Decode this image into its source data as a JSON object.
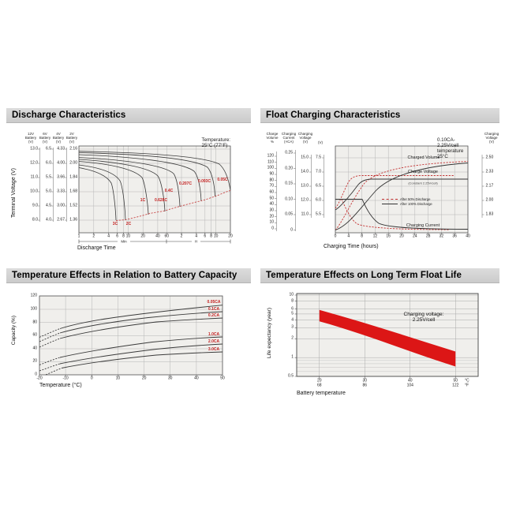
{
  "headers": {
    "discharge": "Discharge Characteristics",
    "float_charging": "Float Charging Characteristics",
    "temp_capacity": "Temperature Effects in Relation to Battery Capacity",
    "float_life": "Temperature Effects on Long Term Float Life"
  },
  "colors": {
    "accent_red": "#c42222",
    "band_red": "#dc1616",
    "curve": "#3a3a3a",
    "grid": "#b5b5b5",
    "plot_bg": "#f0efec",
    "header_bg": "#d5d5d5"
  },
  "charts": {
    "discharge": {
      "note": "Temperature: 25°C (77°F)",
      "col_headers": [
        "12V\nBattery\n(V)",
        "6V\nBattery\n(V)",
        "4V\nBattery\n(V)",
        "2V\nBattery\n(V)"
      ],
      "scale_12v": [
        "13.0",
        "12.0",
        "11.0",
        "10.0",
        "9.0",
        "8.0"
      ],
      "scale_6v": [
        "6.5",
        "6.0",
        "5.5",
        "5.0",
        "4.5",
        "4.0"
      ],
      "scale_4v": [
        "4.33",
        "4.00",
        "3.66",
        "3.33",
        "3.00",
        "2.67"
      ],
      "scale_2v": [
        "2.16",
        "2.00",
        "1.84",
        "1.68",
        "1.52",
        "1.36"
      ],
      "x_ticks_minutes": [
        "1",
        "2",
        "4",
        "6",
        "8",
        "10",
        "20",
        "40",
        "60"
      ],
      "x_ticks_hours": [
        "2",
        "4",
        "6",
        "8",
        "10",
        "20"
      ],
      "range_min": "Min",
      "range_h": "H",
      "y_title": "Terminal Voltage (V)",
      "x_title": "Discharge Time",
      "curve_labels": [
        "3C",
        "2C",
        "1C",
        "0.628C",
        "0.4C",
        "0.207C",
        "0.093C",
        "0.05C"
      ]
    },
    "float_charging": {
      "note": "0.10CA-2.25V/cell  temperature 25°C",
      "col_headers": [
        "Charge\nVolume\n%",
        "Charging\nCurrent\n(×CA)",
        "Charging\nVoltage\n(V)"
      ],
      "unit_v6": "(V)",
      "right_header": "Charging\nVoltage\n(V)",
      "scale_volume": [
        "120",
        "110",
        "100",
        "90",
        "80",
        "70",
        "60",
        "50",
        "40",
        "30",
        "20",
        "10",
        "0"
      ],
      "scale_current": [
        "0.25",
        "0.20",
        "0.15",
        "0.10",
        "0.05",
        "0"
      ],
      "scale_12v": [
        "15.0",
        "14.0",
        "13.0",
        "12.0",
        "11.0"
      ],
      "scale_6v": [
        "7.5",
        "7.0",
        "6.5",
        "6.0",
        "5.5"
      ],
      "scale_cell": [
        "2.50",
        "2.33",
        "2.17",
        "2.00",
        "1.83"
      ],
      "x_ticks": [
        "0",
        "4",
        "8",
        "12",
        "16",
        "20",
        "24",
        "28",
        "32",
        "36",
        "40"
      ],
      "x_title": "Charging Time (hours)",
      "label_charged_volume": "Charged Volume",
      "label_charge_voltage": "Charge Voltage",
      "label_charge_voltage_sub": "(Constant 2.25V/cell)",
      "label_charging_current": "Charging Current",
      "legend_50": "After 50% Discharge",
      "legend_100": "After 100% Discharge"
    },
    "temp_capacity": {
      "y_ticks": [
        "120",
        "100",
        "80",
        "60",
        "40",
        "20",
        "0"
      ],
      "x_ticks": [
        "-20",
        "-10",
        "0",
        "10",
        "20",
        "30",
        "40",
        "50"
      ],
      "y_title": "Capacity (%)",
      "x_title": "Temperature (°C)",
      "curve_labels": [
        "0.05CA",
        "0.1CA",
        "0.2CA",
        "1.0CA",
        "2.0CA",
        "3.0CA"
      ]
    },
    "float_life": {
      "y_ticks": [
        "10",
        "8",
        "6",
        "5",
        "4",
        "3",
        "2",
        "1",
        "0.5"
      ],
      "x_ticks_c": [
        "20",
        "30",
        "40",
        "50"
      ],
      "x_ticks_f": [
        "68",
        "86",
        "104",
        "122"
      ],
      "unit_c": "°C",
      "unit_f": "°F",
      "y_title": "Life expectancy (year)",
      "x_title": "Battery temperature",
      "annotation": "Charging voltage:\n2.25V/cell"
    }
  },
  "chart_data": [
    {
      "type": "line",
      "title": "Discharge Characteristics",
      "condition": "Temperature: 25°C (77°F)",
      "x_axis": {
        "label": "Discharge Time",
        "scale": "log",
        "units": [
          "Min",
          "H"
        ],
        "ticks_minutes": [
          1,
          2,
          4,
          6,
          8,
          10,
          20,
          40,
          60
        ],
        "ticks_hours": [
          2,
          4,
          6,
          8,
          10,
          20
        ]
      },
      "y_axis": {
        "label": "Terminal Voltage (V)",
        "scales": {
          "12V": [
            13.0,
            12.0,
            11.0,
            10.0,
            9.0,
            8.0
          ],
          "6V": [
            6.5,
            6.0,
            5.5,
            5.0,
            4.5,
            4.0
          ],
          "4V": [
            4.33,
            4.0,
            3.66,
            3.33,
            3.0,
            2.67
          ],
          "2V": [
            2.16,
            2.0,
            1.84,
            1.68,
            1.52,
            1.36
          ]
        }
      },
      "series": [
        {
          "name": "3C",
          "points_min_Vpercell": [
            [
              1,
              1.95
            ],
            [
              3,
              1.82
            ],
            [
              5,
              1.62
            ],
            [
              6,
              1.36
            ]
          ]
        },
        {
          "name": "2C",
          "points_min_Vpercell": [
            [
              1,
              1.99
            ],
            [
              4,
              1.88
            ],
            [
              8,
              1.62
            ],
            [
              9.5,
              1.37
            ]
          ]
        },
        {
          "name": "1C",
          "points_min_Vpercell": [
            [
              1,
              2.03
            ],
            [
              10,
              1.92
            ],
            [
              25,
              1.62
            ],
            [
              30,
              1.42
            ]
          ]
        },
        {
          "name": "0.628C",
          "points_min_Vpercell": [
            [
              1,
              2.05
            ],
            [
              20,
              1.93
            ],
            [
              45,
              1.66
            ],
            [
              55,
              1.45
            ]
          ]
        },
        {
          "name": "0.4C",
          "points_min_Vpercell": [
            [
              1,
              2.07
            ],
            [
              40,
              1.93
            ],
            [
              90,
              1.68
            ],
            [
              110,
              1.5
            ]
          ]
        },
        {
          "name": "0.207C",
          "points_min_Vpercell": [
            [
              1,
              2.09
            ],
            [
              90,
              1.92
            ],
            [
              200,
              1.7
            ],
            [
              240,
              1.56
            ]
          ]
        },
        {
          "name": "0.093C",
          "points_min_Vpercell": [
            [
              1,
              2.11
            ],
            [
              240,
              1.92
            ],
            [
              500,
              1.73
            ],
            [
              570,
              1.62
            ]
          ]
        },
        {
          "name": "0.05C",
          "points_min_Vpercell": [
            [
              1,
              2.12
            ],
            [
              480,
              1.95
            ],
            [
              1080,
              1.78
            ],
            [
              1200,
              1.68
            ]
          ]
        }
      ]
    },
    {
      "type": "line",
      "title": "Float Charging Characteristics",
      "condition": "0.10CA-2.25V/cell temperature 25°C",
      "x_axis": {
        "label": "Charging Time (hours)",
        "ticks": [
          0,
          4,
          8,
          12,
          16,
          20,
          24,
          28,
          32,
          36,
          40
        ]
      },
      "y_axes": {
        "charge_volume_pct": [
          0,
          120
        ],
        "charging_current_CA": [
          0,
          0.25
        ],
        "charging_voltage_12V": [
          11.0,
          15.0
        ],
        "charging_voltage_6V": [
          5.5,
          7.5
        ],
        "charging_voltage_V_per_cell": [
          1.83,
          2.5
        ]
      },
      "legend": [
        "After 50% Discharge",
        "After 100% Discharge"
      ],
      "annotations": [
        "Charged Volume",
        "Charge Voltage",
        "(Constant 2.25V/cell)",
        "Charging Current"
      ],
      "series": [
        {
          "name": "Charged Volume (After 100% Discharge)",
          "style": "solid-black",
          "points_h_pct": [
            [
              0,
              0
            ],
            [
              4,
              30
            ],
            [
              8,
              62
            ],
            [
              16,
              88
            ],
            [
              24,
              100
            ],
            [
              36,
              110
            ]
          ]
        },
        {
          "name": "Charged Volume (After 50% Discharge)",
          "style": "dashed-red",
          "points_h_pct": [
            [
              0,
              0
            ],
            [
              4,
              45
            ],
            [
              8,
              75
            ],
            [
              16,
              96
            ],
            [
              24,
              106
            ],
            [
              36,
              112
            ]
          ]
        },
        {
          "name": "Charge Voltage (After 100% Discharge)",
          "style": "solid-black",
          "points_h_V6": [
            [
              0,
              5.65
            ],
            [
              4,
              6.2
            ],
            [
              8,
              6.75
            ],
            [
              40,
              6.75
            ]
          ]
        },
        {
          "name": "Charge Voltage (After 50% Discharge)",
          "style": "dashed-red",
          "points_h_V6": [
            [
              0,
              5.7
            ],
            [
              3,
              6.5
            ],
            [
              6,
              6.8
            ],
            [
              36,
              6.8
            ]
          ]
        },
        {
          "name": "Charging Current (After 100% Discharge)",
          "style": "solid-black",
          "points_h_CA": [
            [
              0,
              0.1
            ],
            [
              8,
              0.1
            ],
            [
              12,
              0.035
            ],
            [
              20,
              0.01
            ],
            [
              40,
              0.01
            ]
          ]
        },
        {
          "name": "Charging Current (After 50% Discharge)",
          "style": "dashed-red",
          "points_h_CA": [
            [
              0,
              0.1
            ],
            [
              2,
              0.1
            ],
            [
              6,
              0.03
            ],
            [
              12,
              0.01
            ],
            [
              36,
              0.01
            ]
          ]
        }
      ]
    },
    {
      "type": "line",
      "title": "Temperature Effects in Relation to Battery Capacity",
      "x_axis": {
        "label": "Temperature (°C)",
        "ticks": [
          -20,
          -10,
          0,
          10,
          20,
          30,
          40,
          50
        ]
      },
      "y_axis": {
        "label": "Capacity (%)",
        "range": [
          0,
          120
        ],
        "ticks": [
          0,
          20,
          40,
          60,
          80,
          100,
          120
        ]
      },
      "series": [
        {
          "name": "0.05CA",
          "points_c_pct": [
            [
              -20,
              57
            ],
            [
              0,
              84
            ],
            [
              20,
              97
            ],
            [
              40,
              104
            ],
            [
              50,
              107
            ]
          ]
        },
        {
          "name": "0.1CA",
          "points_c_pct": [
            [
              -20,
              52
            ],
            [
              0,
              79
            ],
            [
              20,
              92
            ],
            [
              40,
              95
            ],
            [
              50,
              96
            ]
          ]
        },
        {
          "name": "0.2CA",
          "points_c_pct": [
            [
              -20,
              44
            ],
            [
              0,
              70
            ],
            [
              20,
              83
            ],
            [
              40,
              85
            ],
            [
              50,
              86
            ]
          ]
        },
        {
          "name": "1.0CA",
          "points_c_pct": [
            [
              -20,
              15
            ],
            [
              0,
              38
            ],
            [
              20,
              50
            ],
            [
              40,
              56
            ],
            [
              50,
              58
            ]
          ]
        },
        {
          "name": "2.0CA",
          "points_c_pct": [
            [
              -20,
              7
            ],
            [
              0,
              27
            ],
            [
              20,
              40
            ],
            [
              40,
              45
            ],
            [
              50,
              47
            ]
          ]
        },
        {
          "name": "3.0CA",
          "points_c_pct": [
            [
              -15,
              0
            ],
            [
              0,
              17
            ],
            [
              20,
              30
            ],
            [
              40,
              34
            ],
            [
              50,
              35
            ]
          ]
        }
      ]
    },
    {
      "type": "area",
      "title": "Temperature Effects on Long Term Float Life",
      "annotation": "Charging voltage: 2.25V/cell",
      "x_axis": {
        "label": "Battery temperature",
        "ticks_c": [
          20,
          30,
          40,
          50
        ],
        "ticks_f": [
          68,
          86,
          104,
          122
        ]
      },
      "y_axis": {
        "label": "Life expectancy (year)",
        "scale": "log",
        "ticks": [
          0.5,
          1,
          2,
          3,
          4,
          5,
          6,
          8,
          10
        ]
      },
      "band": [
        {
          "temp_c": 20,
          "life_years_min": 3.8,
          "life_years_max": 5.8
        },
        {
          "temp_c": 30,
          "life_years_min": 2.4,
          "life_years_max": 3.6
        },
        {
          "temp_c": 40,
          "life_years_min": 1.3,
          "life_years_max": 2.0
        },
        {
          "temp_c": 50,
          "life_years_min": 0.72,
          "life_years_max": 1.25
        }
      ]
    }
  ]
}
